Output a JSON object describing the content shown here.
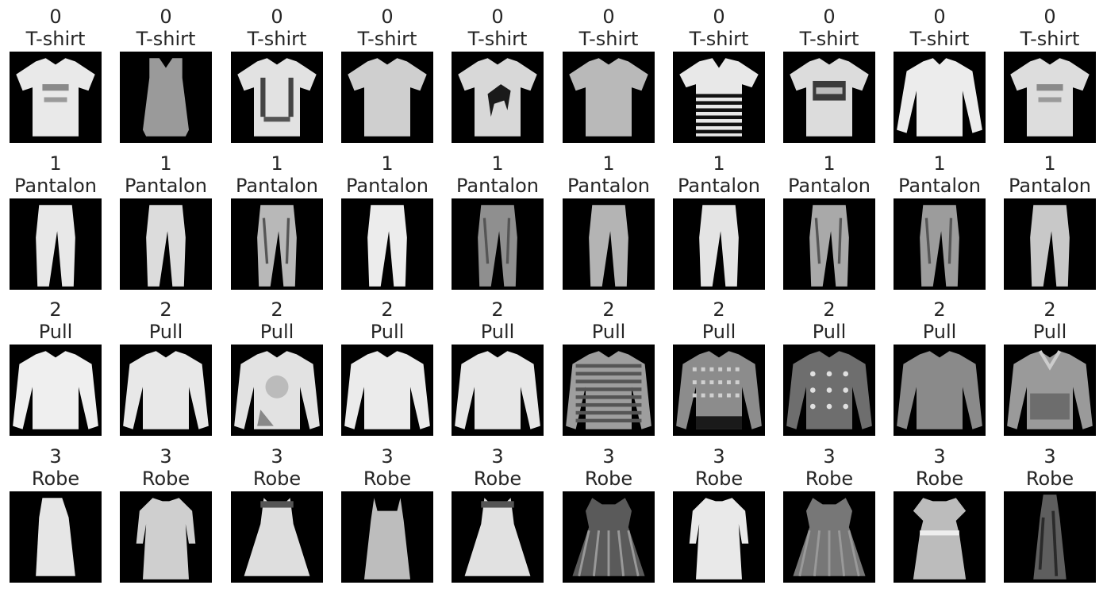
{
  "rows": [
    {
      "class_id": "0",
      "class_name": "T-shirt",
      "items": [
        {
          "variant": "tee-print",
          "shade": "#e9e9e9"
        },
        {
          "variant": "tank",
          "shade": "#9a9a9a"
        },
        {
          "variant": "tee-overall",
          "shade": "#e2e2e2"
        },
        {
          "variant": "tee-plain",
          "shade": "#cfcfcf"
        },
        {
          "variant": "tee-horse",
          "shade": "#d8d8d8"
        },
        {
          "variant": "tee-plain",
          "shade": "#b9b9b9"
        },
        {
          "variant": "polo-striped",
          "shade": "#e8e8e8"
        },
        {
          "variant": "tee-box",
          "shade": "#dcdcdc"
        },
        {
          "variant": "longsleeve",
          "shade": "#ececec"
        },
        {
          "variant": "tee-print",
          "shade": "#dddddd"
        }
      ]
    },
    {
      "class_id": "1",
      "class_name": "Pantalon",
      "items": [
        {
          "variant": "pants",
          "shade": "#e8e8e8"
        },
        {
          "variant": "pants",
          "shade": "#dcdcdc"
        },
        {
          "variant": "pants-pattern",
          "shade": "#b8b8b8"
        },
        {
          "variant": "pants",
          "shade": "#ececec"
        },
        {
          "variant": "pants-pattern",
          "shade": "#8f8f8f"
        },
        {
          "variant": "pants",
          "shade": "#b4b4b4"
        },
        {
          "variant": "pants",
          "shade": "#e4e4e4"
        },
        {
          "variant": "pants-pattern",
          "shade": "#a9a9a9"
        },
        {
          "variant": "pants-pattern",
          "shade": "#9c9c9c"
        },
        {
          "variant": "pants",
          "shade": "#c8c8c8"
        }
      ]
    },
    {
      "class_id": "2",
      "class_name": "Pull",
      "items": [
        {
          "variant": "sweater",
          "shade": "#efefef"
        },
        {
          "variant": "sweater",
          "shade": "#e8e8e8"
        },
        {
          "variant": "sweater-print",
          "shade": "#e2e2e2"
        },
        {
          "variant": "sweater",
          "shade": "#ebebeb"
        },
        {
          "variant": "sweater",
          "shade": "#e7e7e7"
        },
        {
          "variant": "sweater-striped",
          "shade": "#9e9e9e"
        },
        {
          "variant": "sweater-knit",
          "shade": "#8c8c8c"
        },
        {
          "variant": "sweater-dots",
          "shade": "#6e6e6e"
        },
        {
          "variant": "sweater",
          "shade": "#8a8a8a"
        },
        {
          "variant": "hoodie",
          "shade": "#9a9a9a"
        }
      ]
    },
    {
      "class_id": "3",
      "class_name": "Robe",
      "items": [
        {
          "variant": "dress-side",
          "shade": "#e6e6e6"
        },
        {
          "variant": "dress-long",
          "shade": "#cfcfcf"
        },
        {
          "variant": "dress-flare",
          "shade": "#dedede"
        },
        {
          "variant": "dress-slip",
          "shade": "#bdbdbd"
        },
        {
          "variant": "dress-flare",
          "shade": "#e1e1e1"
        },
        {
          "variant": "dress-dark",
          "shade": "#5a5a5a"
        },
        {
          "variant": "dress-sleeve",
          "shade": "#e9e9e9"
        },
        {
          "variant": "dress-dark",
          "shade": "#777777"
        },
        {
          "variant": "dress-belt",
          "shade": "#bcbcbc"
        },
        {
          "variant": "dress-narrow",
          "shade": "#5e5e5e"
        }
      ]
    }
  ]
}
